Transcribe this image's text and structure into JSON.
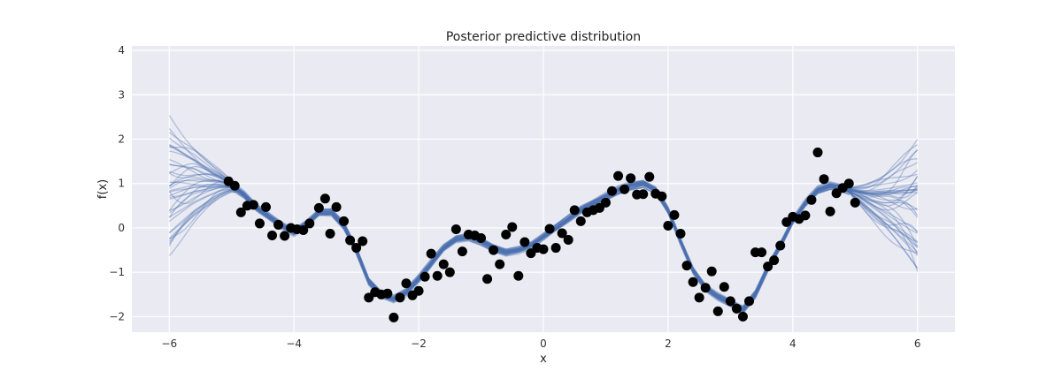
{
  "chart_data": {
    "type": "line",
    "title": "Posterior predictive distribution",
    "xlabel": "x",
    "ylabel": "f(x)",
    "xlim": [
      -6.6,
      6.6
    ],
    "ylim": [
      -2.35,
      4.1
    ],
    "xticks": [
      -6,
      -4,
      -2,
      0,
      2,
      4,
      6
    ],
    "xtick_labels": [
      "−6",
      "−4",
      "−2",
      "0",
      "2",
      "4",
      "6"
    ],
    "yticks": [
      -2,
      -1,
      0,
      1,
      2,
      3,
      4
    ],
    "ytick_labels": [
      "−2",
      "−1",
      "0",
      "1",
      "2",
      "3",
      "4"
    ],
    "grid": true,
    "background": "#eaeaf2",
    "grid_color": "#ffffff",
    "line_color": "#4c72b0",
    "point_color": "#000000",
    "posterior_mean": {
      "x": [
        -6,
        -5.6,
        -5.2,
        -5.0,
        -4.8,
        -4.6,
        -4.4,
        -4.2,
        -4.0,
        -3.8,
        -3.6,
        -3.4,
        -3.2,
        -3.0,
        -2.8,
        -2.6,
        -2.4,
        -2.2,
        -2.0,
        -1.8,
        -1.6,
        -1.4,
        -1.2,
        -1.0,
        -0.8,
        -0.6,
        -0.4,
        -0.2,
        0.0,
        0.2,
        0.4,
        0.6,
        0.8,
        1.0,
        1.2,
        1.4,
        1.6,
        1.8,
        2.0,
        2.2,
        2.4,
        2.6,
        2.8,
        3.0,
        3.2,
        3.4,
        3.6,
        3.8,
        4.0,
        4.2,
        4.4,
        4.6,
        4.8,
        5.0,
        5.2,
        5.6,
        6.0
      ],
      "y": [
        0.9,
        1.0,
        1.0,
        0.95,
        0.75,
        0.45,
        0.25,
        0.05,
        -0.1,
        0.1,
        0.35,
        0.35,
        0.05,
        -0.5,
        -1.2,
        -1.5,
        -1.6,
        -1.45,
        -1.15,
        -0.8,
        -0.45,
        -0.25,
        -0.2,
        -0.3,
        -0.45,
        -0.55,
        -0.5,
        -0.4,
        -0.2,
        0.0,
        0.2,
        0.4,
        0.55,
        0.7,
        0.85,
        0.95,
        1.0,
        0.85,
        0.4,
        -0.3,
        -0.95,
        -1.35,
        -1.55,
        -1.7,
        -1.85,
        -1.5,
        -0.9,
        -0.4,
        0.15,
        0.55,
        0.85,
        0.95,
        0.9,
        0.8,
        0.7,
        0.55,
        0.4
      ]
    },
    "observations": [
      {
        "x": -5.05,
        "y": 1.05
      },
      {
        "x": -4.95,
        "y": 0.95
      },
      {
        "x": -4.85,
        "y": 0.35
      },
      {
        "x": -4.75,
        "y": 0.5
      },
      {
        "x": -4.65,
        "y": 0.52
      },
      {
        "x": -4.55,
        "y": 0.1
      },
      {
        "x": -4.45,
        "y": 0.47
      },
      {
        "x": -4.35,
        "y": -0.17
      },
      {
        "x": -4.25,
        "y": 0.07
      },
      {
        "x": -4.15,
        "y": -0.18
      },
      {
        "x": -4.05,
        "y": 0.0
      },
      {
        "x": -3.95,
        "y": -0.03
      },
      {
        "x": -3.85,
        "y": -0.05
      },
      {
        "x": -3.75,
        "y": 0.1
      },
      {
        "x": -3.6,
        "y": 0.45
      },
      {
        "x": -3.5,
        "y": 0.66
      },
      {
        "x": -3.42,
        "y": -0.13
      },
      {
        "x": -3.32,
        "y": 0.47
      },
      {
        "x": -3.2,
        "y": 0.15
      },
      {
        "x": -3.1,
        "y": -0.28
      },
      {
        "x": -3.0,
        "y": -0.45
      },
      {
        "x": -2.9,
        "y": -0.3
      },
      {
        "x": -2.8,
        "y": -1.57
      },
      {
        "x": -2.7,
        "y": -1.45
      },
      {
        "x": -2.6,
        "y": -1.5
      },
      {
        "x": -2.5,
        "y": -1.48
      },
      {
        "x": -2.4,
        "y": -2.02
      },
      {
        "x": -2.3,
        "y": -1.57
      },
      {
        "x": -2.2,
        "y": -1.25
      },
      {
        "x": -2.1,
        "y": -1.52
      },
      {
        "x": -2.0,
        "y": -1.42
      },
      {
        "x": -1.9,
        "y": -1.1
      },
      {
        "x": -1.8,
        "y": -0.58
      },
      {
        "x": -1.7,
        "y": -1.08
      },
      {
        "x": -1.6,
        "y": -0.82
      },
      {
        "x": -1.5,
        "y": -1.0
      },
      {
        "x": -1.4,
        "y": -0.03
      },
      {
        "x": -1.3,
        "y": -0.53
      },
      {
        "x": -1.2,
        "y": -0.15
      },
      {
        "x": -1.1,
        "y": -0.17
      },
      {
        "x": -1.0,
        "y": -0.23
      },
      {
        "x": -0.9,
        "y": -1.15
      },
      {
        "x": -0.8,
        "y": -0.5
      },
      {
        "x": -0.7,
        "y": -0.82
      },
      {
        "x": -0.6,
        "y": -0.15
      },
      {
        "x": -0.5,
        "y": 0.02
      },
      {
        "x": -0.4,
        "y": -1.08
      },
      {
        "x": -0.3,
        "y": -0.32
      },
      {
        "x": -0.2,
        "y": -0.57
      },
      {
        "x": -0.1,
        "y": -0.45
      },
      {
        "x": 0.0,
        "y": -0.48
      },
      {
        "x": 0.1,
        "y": -0.02
      },
      {
        "x": 0.2,
        "y": -0.45
      },
      {
        "x": 0.3,
        "y": -0.12
      },
      {
        "x": 0.4,
        "y": -0.27
      },
      {
        "x": 0.5,
        "y": 0.4
      },
      {
        "x": 0.6,
        "y": 0.15
      },
      {
        "x": 0.7,
        "y": 0.35
      },
      {
        "x": 0.8,
        "y": 0.4
      },
      {
        "x": 0.9,
        "y": 0.45
      },
      {
        "x": 1.0,
        "y": 0.57
      },
      {
        "x": 1.1,
        "y": 0.83
      },
      {
        "x": 1.2,
        "y": 1.17
      },
      {
        "x": 1.3,
        "y": 0.87
      },
      {
        "x": 1.4,
        "y": 1.12
      },
      {
        "x": 1.5,
        "y": 0.75
      },
      {
        "x": 1.6,
        "y": 0.76
      },
      {
        "x": 1.7,
        "y": 1.15
      },
      {
        "x": 1.8,
        "y": 0.77
      },
      {
        "x": 1.9,
        "y": 0.71
      },
      {
        "x": 2.0,
        "y": 0.05
      },
      {
        "x": 2.1,
        "y": 0.29
      },
      {
        "x": 2.2,
        "y": -0.13
      },
      {
        "x": 2.3,
        "y": -0.85
      },
      {
        "x": 2.4,
        "y": -1.22
      },
      {
        "x": 2.5,
        "y": -1.57
      },
      {
        "x": 2.6,
        "y": -1.35
      },
      {
        "x": 2.7,
        "y": -0.98
      },
      {
        "x": 2.8,
        "y": -1.88
      },
      {
        "x": 2.9,
        "y": -1.33
      },
      {
        "x": 3.0,
        "y": -1.65
      },
      {
        "x": 3.1,
        "y": -1.82
      },
      {
        "x": 3.2,
        "y": -2.0
      },
      {
        "x": 3.3,
        "y": -1.65
      },
      {
        "x": 3.4,
        "y": -0.55
      },
      {
        "x": 3.5,
        "y": -0.55
      },
      {
        "x": 3.6,
        "y": -0.87
      },
      {
        "x": 3.7,
        "y": -0.73
      },
      {
        "x": 3.8,
        "y": -0.4
      },
      {
        "x": 3.9,
        "y": 0.13
      },
      {
        "x": 4.0,
        "y": 0.25
      },
      {
        "x": 4.1,
        "y": 0.2
      },
      {
        "x": 4.2,
        "y": 0.28
      },
      {
        "x": 4.3,
        "y": 0.63
      },
      {
        "x": 4.4,
        "y": 1.7
      },
      {
        "x": 4.5,
        "y": 1.1
      },
      {
        "x": 4.6,
        "y": 0.37
      },
      {
        "x": 4.7,
        "y": 0.78
      },
      {
        "x": 4.8,
        "y": 0.9
      },
      {
        "x": 4.9,
        "y": 1.0
      },
      {
        "x": 5.0,
        "y": 0.57
      }
    ]
  }
}
